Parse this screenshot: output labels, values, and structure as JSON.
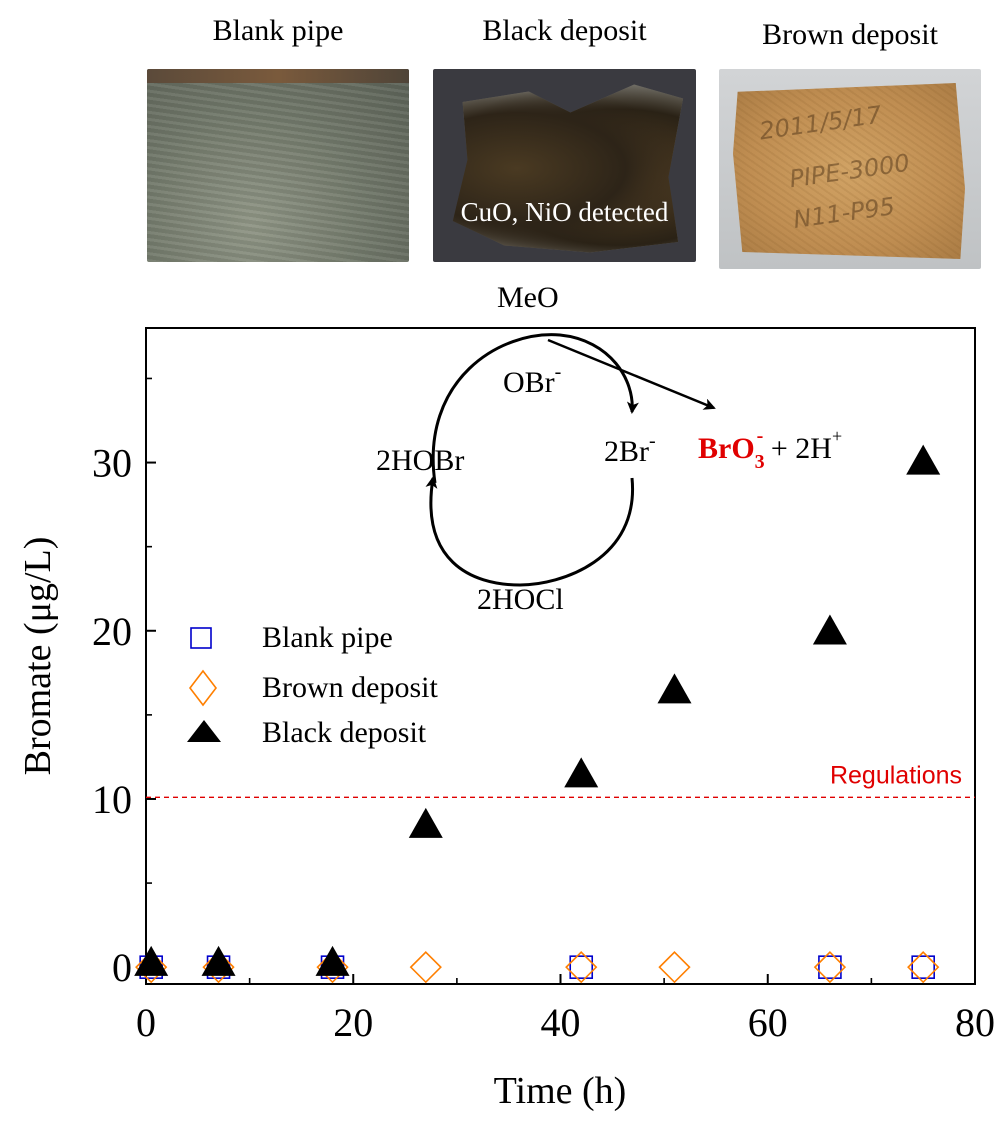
{
  "photos": [
    {
      "label": "Blank pipe"
    },
    {
      "label": "Black deposit",
      "caption": "CuO, NiO detected"
    },
    {
      "label": "Brown deposit",
      "handwriting": [
        "2011/5/17",
        "PIPE-3000",
        "N11-P95"
      ]
    }
  ],
  "diagram": {
    "meo": "MeO",
    "obr_main": "OBr",
    "obr_sup": "-",
    "hobr": "2HOBr",
    "br_main": "2Br",
    "br_sup": "-",
    "bro3_main": "BrO",
    "bro3_sub": "3",
    "bro3_sup": "-",
    "h_text": " + 2H",
    "h_sup": "+",
    "hocl": "2HOCl"
  },
  "colors": {
    "blank": "#0000cc",
    "brown": "#ff7f00",
    "black": "#000000",
    "regulation": "#e00000",
    "bromate_text": "#e00000"
  },
  "chart_data": {
    "type": "scatter",
    "title": "",
    "xlabel": "Time (h)",
    "ylabel": "Bromate (μg/L)",
    "xlim": [
      0,
      80
    ],
    "ylim": [
      -1,
      38
    ],
    "x_ticks": [
      0,
      20,
      40,
      60,
      80
    ],
    "y_ticks": [
      0,
      10,
      20,
      30
    ],
    "legend_position": "middle-left",
    "series": [
      {
        "name": "Blank pipe",
        "marker": "square-open",
        "color": "#0000cc",
        "points": [
          [
            0.5,
            0
          ],
          [
            7,
            0
          ],
          [
            18,
            0
          ],
          [
            42,
            0
          ],
          [
            66,
            0
          ],
          [
            75,
            0
          ]
        ]
      },
      {
        "name": "Brown deposit",
        "marker": "diamond-open",
        "color": "#ff7f00",
        "points": [
          [
            0.5,
            0
          ],
          [
            7,
            0
          ],
          [
            18,
            0
          ],
          [
            27,
            0
          ],
          [
            42,
            0
          ],
          [
            51,
            0
          ],
          [
            66,
            0
          ],
          [
            75,
            0
          ]
        ]
      },
      {
        "name": "Black deposit",
        "marker": "triangle-filled",
        "color": "#000000",
        "points": [
          [
            0.5,
            0.2
          ],
          [
            7,
            0.2
          ],
          [
            18,
            0.2
          ],
          [
            27,
            8.4
          ],
          [
            42,
            11.4
          ],
          [
            51,
            16.4
          ],
          [
            66,
            19.9
          ],
          [
            75,
            30.0
          ]
        ]
      }
    ],
    "reference_line": {
      "y": 10.1,
      "label": "Regulations",
      "style": "dashed",
      "color": "#e00000"
    }
  }
}
